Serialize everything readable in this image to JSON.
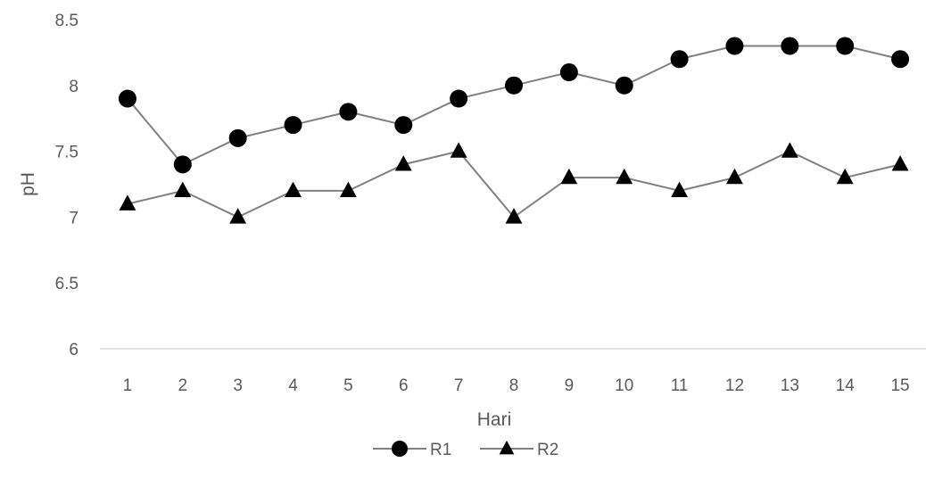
{
  "chart_data": {
    "type": "line",
    "title": "",
    "xlabel": "Hari",
    "ylabel": "pH",
    "categories": [
      "1",
      "2",
      "3",
      "4",
      "5",
      "6",
      "7",
      "8",
      "9",
      "10",
      "11",
      "12",
      "13",
      "14",
      "15"
    ],
    "ylim": [
      6,
      8.5
    ],
    "yticks": [
      "6",
      "6.5",
      "7",
      "7.5",
      "8",
      "8.5"
    ],
    "grid": false,
    "legend": "bottom",
    "series": [
      {
        "name": "R1",
        "marker": "circle",
        "color": "#000000",
        "line_color": "#808080",
        "values": [
          7.9,
          7.4,
          7.6,
          7.7,
          7.8,
          7.7,
          7.9,
          8.0,
          8.1,
          8.0,
          8.2,
          8.3,
          8.3,
          8.3,
          8.2
        ]
      },
      {
        "name": "R2",
        "marker": "triangle",
        "color": "#000000",
        "line_color": "#808080",
        "values": [
          7.1,
          7.2,
          7.0,
          7.2,
          7.2,
          7.4,
          7.5,
          7.0,
          7.3,
          7.3,
          7.2,
          7.3,
          7.5,
          7.3,
          7.4
        ]
      }
    ]
  }
}
